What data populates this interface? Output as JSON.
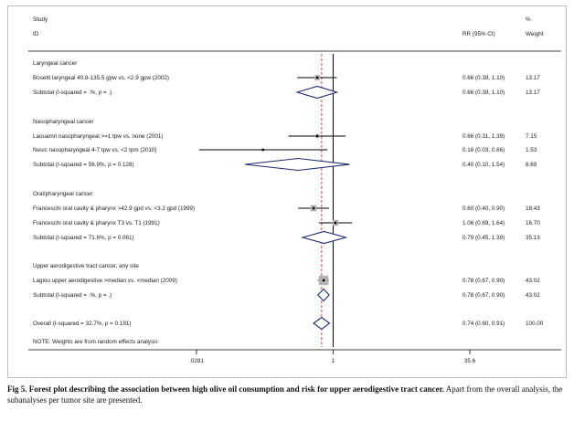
{
  "header": {
    "study_line1": "Study",
    "study_line2": "ID",
    "rr_header": "RR (95% CI)",
    "weight_line1": "%",
    "weight_line2": "Weight"
  },
  "chart_data": {
    "type": "forest",
    "x_scale": "log",
    "xlim": [
      0.0281,
      35.6
    ],
    "ticks": [
      {
        "value": 0.0281,
        "label": ".0281"
      },
      {
        "value": 1,
        "label": "1"
      },
      {
        "value": 35.6,
        "label": "35.6"
      }
    ],
    "overall_line": 0.74,
    "groups": [
      {
        "title": "Laryngeal cancer",
        "studies": [
          {
            "label": "Bosetti laryngeal 40.8-135.5 gpw vs. <2.9 gpw (2002)",
            "rr": 0.66,
            "lo": 0.39,
            "hi": 1.1,
            "rr_text": "0.66 (0.39, 1.10)",
            "weight_text": "13.17",
            "weight": 13.17
          }
        ],
        "subtotal": {
          "label": "Subtotal  (I-squared = .%, p = .)",
          "rr": 0.66,
          "lo": 0.39,
          "hi": 1.1,
          "rr_text": "0.66 (0.39, 1.10)",
          "weight_text": "13.17"
        }
      },
      {
        "title": "Nasopharyngeal cancer",
        "studies": [
          {
            "label": "Laouamri nasopharyngeal >=1 tpw vs. none (2001)",
            "rr": 0.66,
            "lo": 0.31,
            "hi": 1.39,
            "rr_text": "0.66 (0.31, 1.39)",
            "weight_text": "7.15",
            "weight": 7.15
          },
          {
            "label": "Nesic nasopharyngeal 4-7 tpw vs. <2 tpm (2010)",
            "rr": 0.16,
            "lo": 0.03,
            "hi": 0.86,
            "rr_text": "0.16 (0.03, 0.86)",
            "weight_text": "1.53",
            "weight": 1.53
          }
        ],
        "subtotal": {
          "label": "Subtotal  (I-squared = 56.9%, p = 0.128)",
          "rr": 0.4,
          "lo": 0.1,
          "hi": 1.54,
          "rr_text": "0.40 (0.10, 1.54)",
          "weight_text": "8.69"
        }
      },
      {
        "title": "Oral/pharyngeal cancer",
        "studies": [
          {
            "label": "Franceschi oral cavity & pharynx >42.9 gpd vs. <3.2 gpd (1999)",
            "rr": 0.6,
            "lo": 0.4,
            "hi": 0.9,
            "rr_text": "0.60 (0.40, 0.90)",
            "weight_text": "18.43",
            "weight": 18.43
          },
          {
            "label": "Franceschi oral cavity & pharynx T3 vs. T1 (1991)",
            "rr": 1.06,
            "lo": 0.69,
            "hi": 1.64,
            "rr_text": "1.06 (0.69, 1.64)",
            "weight_text": "16.70",
            "weight": 16.7
          }
        ],
        "subtotal": {
          "label": "Subtotal  (I-squared = 71.6%, p = 0.061)",
          "rr": 0.79,
          "lo": 0.45,
          "hi": 1.39,
          "rr_text": "0.79 (0.45, 1.39)",
          "weight_text": "35.13"
        }
      },
      {
        "title": "Upper aerodigestive tract cancer, any site",
        "studies": [
          {
            "label": "Lagiou upper aerodigestive >median vs. <median (2009)",
            "rr": 0.78,
            "lo": 0.67,
            "hi": 0.9,
            "rr_text": "0.78 (0.67, 0.90)",
            "weight_text": "43.02",
            "weight": 43.02
          }
        ],
        "subtotal": {
          "label": "Subtotal  (I-squared = .%, p = .)",
          "rr": 0.78,
          "lo": 0.67,
          "hi": 0.9,
          "rr_text": "0.78 (0.67, 0.90)",
          "weight_text": "43.02"
        }
      }
    ],
    "overall": {
      "label": "Overall  (I-squared = 32.7%, p = 0.191)",
      "rr": 0.74,
      "lo": 0.6,
      "hi": 0.91,
      "rr_text": "0.74 (0.60, 0.91)",
      "weight_text": "100.00"
    },
    "note": "NOTE: Weights are from random effects analysis",
    "colors": {
      "diamond": "#1f2a6b",
      "box": "#b3b3b3",
      "ci": "#000000",
      "null_line": "#000000",
      "overall_line": "#c0392b"
    }
  },
  "caption": {
    "bold": "Fig 5. Forest plot describing the association between high olive oil consumption and risk for upper aerodigestive tract cancer.",
    "rest": " Apart from the overall analysis, the subanalyses per tumor site are presented."
  }
}
